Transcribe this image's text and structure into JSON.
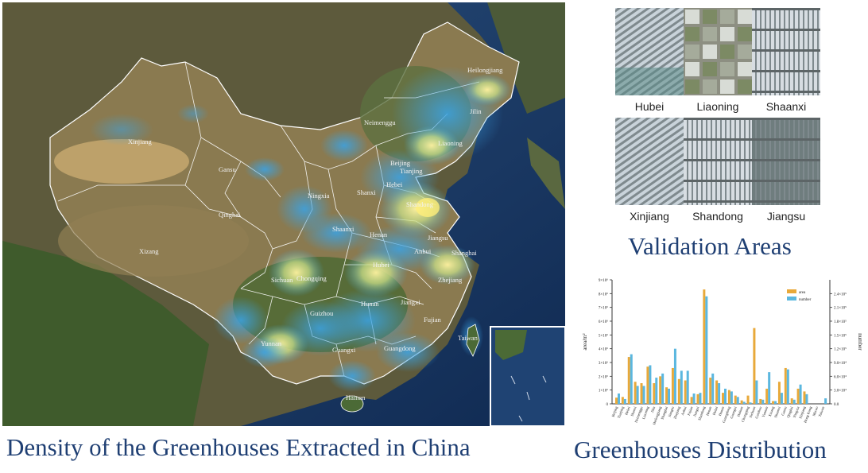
{
  "map": {
    "provinces": [
      "Heilongjiang",
      "Jilin",
      "Neimenggu",
      "Liaoning",
      "Xinjiang",
      "Gansu",
      "Beijing",
      "Tianjing",
      "Hebei",
      "Ningxia",
      "Shanxi",
      "Qinghai",
      "Shandong",
      "Shaanxi",
      "Henan",
      "Jiangsu",
      "Xizang",
      "Anhui",
      "Shanghai",
      "Hubei",
      "Sichuan",
      "Chongqing",
      "Zhejiang",
      "Hunan",
      "Jiangxi",
      "Guizhou",
      "Fujian",
      "Taiwan",
      "Yunnan",
      "Guangxi",
      "Guangdong",
      "Hainan"
    ]
  },
  "thumbnails": [
    {
      "label": "Hubei",
      "pattern": "diagonal"
    },
    {
      "label": "Liaoning",
      "pattern": "fields"
    },
    {
      "label": "Shaanxi",
      "pattern": "rows"
    },
    {
      "label": "Xinjiang",
      "pattern": "diagonal"
    },
    {
      "label": "Shandong",
      "pattern": "rows"
    },
    {
      "label": "Jiangsu",
      "pattern": "rows"
    }
  ],
  "captions": {
    "density": "Density of the Greenhouses Extracted in China",
    "validation": "Validation Areas",
    "distribution": "Greenhouses Distribution"
  },
  "chart_data": {
    "type": "bar",
    "categories": [
      "Beijing",
      "Tianjing",
      "Hebei",
      "Shanxi",
      "Neimenggu",
      "Liaoning",
      "Jilin",
      "Heilongjiang",
      "Shanghai",
      "Jiangsu",
      "Zhejiang",
      "Anhui",
      "Fujian",
      "Jiangxi",
      "Shandong",
      "Henan",
      "Hubei",
      "Hunan",
      "Guangdong",
      "Guangxi",
      "Hainan",
      "Chongqing",
      "Sichuan",
      "Guizhou",
      "Yunnan",
      "Xizang",
      "Shaanxi",
      "Gansu",
      "Qinghai",
      "Ningxia",
      "Xinjiang",
      "Hong Kong",
      "Macao",
      "Taiwan"
    ],
    "series": [
      {
        "name": "area",
        "color": "#e8a93a",
        "values": [
          0.45,
          0.5,
          3.4,
          1.6,
          1.5,
          2.7,
          1.5,
          2.0,
          1.2,
          2.6,
          1.8,
          1.7,
          0.5,
          0.7,
          8.3,
          1.9,
          1.7,
          0.8,
          1.0,
          0.6,
          0.25,
          0.6,
          5.5,
          0.35,
          1.1,
          0.2,
          1.6,
          2.6,
          0.4,
          1.1,
          0.9,
          0.0,
          0.0,
          0.0
        ]
      },
      {
        "name": "number",
        "color": "#5bb7df",
        "values": [
          0.75,
          0.35,
          3.6,
          1.3,
          1.3,
          2.8,
          1.9,
          2.2,
          1.1,
          4.0,
          2.4,
          2.4,
          0.75,
          0.8,
          7.8,
          2.2,
          1.5,
          1.1,
          0.9,
          0.5,
          0.15,
          0.1,
          1.7,
          0.3,
          2.3,
          0.2,
          0.8,
          2.5,
          0.3,
          1.4,
          0.7,
          0.0,
          0.0,
          0.4
        ]
      }
    ],
    "ylim": [
      0,
      9
    ],
    "y_ticks_left": [
      "0",
      "1×10⁶",
      "2×10⁶",
      "3×10⁶",
      "4×10⁶",
      "5×10⁶",
      "6×10⁶",
      "7×10⁶",
      "8×10⁶",
      "9×10⁶"
    ],
    "y_ticks_right": [
      "0.0",
      "3.0×10⁴",
      "6.0×10⁴",
      "9.0×10⁴",
      "1.2×10⁵",
      "1.5×10⁵",
      "1.8×10⁵",
      "2.1×10⁵",
      "2.4×10⁵"
    ],
    "ylabel_left": "area/m²",
    "ylabel_right": "number",
    "legend_position": "top-right",
    "legend_labels": [
      "area",
      "number"
    ]
  }
}
